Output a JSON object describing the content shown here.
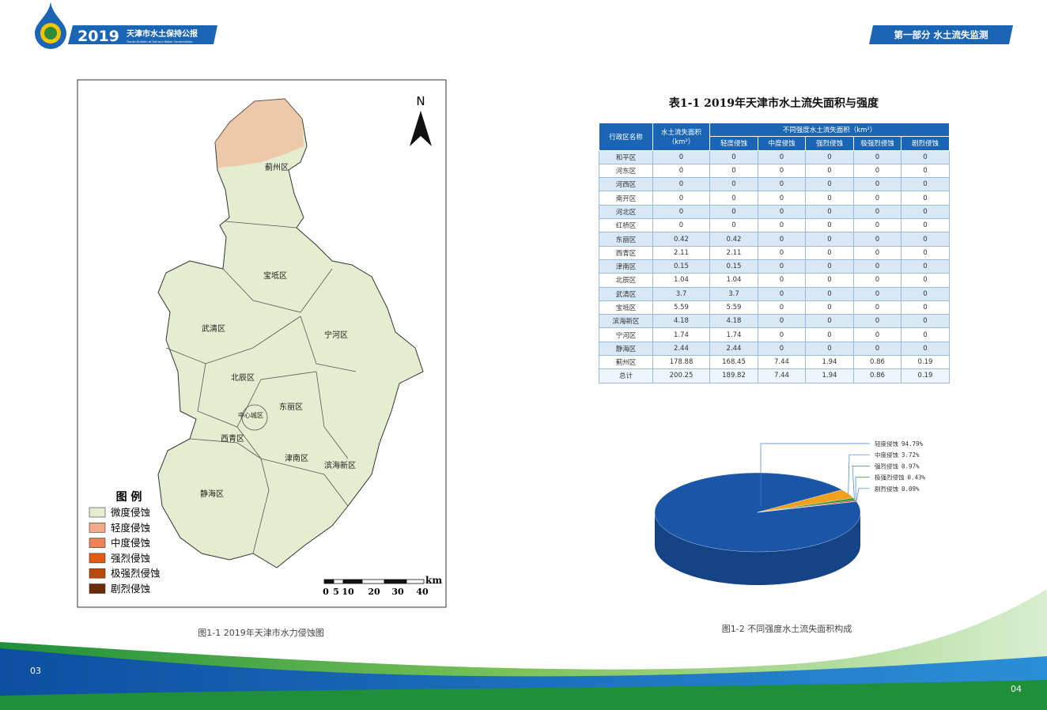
{
  "header": {
    "year": "2019",
    "title": "天津市水土保持公报",
    "subtitle": "Tianjin Bulletin of Soil and Water Conservation",
    "section": "第一部分 水土流失监测"
  },
  "map": {
    "north": "N",
    "districts": [
      "蓟州区",
      "宝坻区",
      "武清区",
      "宁河区",
      "北辰区",
      "东丽区",
      "中心城区",
      "西青区",
      "津南区",
      "滨海新区",
      "静海区"
    ],
    "legend": {
      "title": "图 例",
      "items": [
        {
          "label": "微度侵蚀",
          "color": "#e4edcf"
        },
        {
          "label": "轻度侵蚀",
          "color": "#f4a98a"
        },
        {
          "label": "中度侵蚀",
          "color": "#ef8358"
        },
        {
          "label": "强烈侵蚀",
          "color": "#e25b14"
        },
        {
          "label": "极强烈侵蚀",
          "color": "#b84a0c"
        },
        {
          "label": "剧烈侵蚀",
          "color": "#6b2a08"
        }
      ]
    },
    "scale": {
      "ticks": [
        "0",
        "5",
        "10",
        "20",
        "30",
        "40"
      ],
      "unit": "km"
    },
    "caption": "图1-1 2019年天津市水力侵蚀图"
  },
  "table": {
    "title": "表1-1 2019年天津市水土流失面积与强度",
    "header": {
      "name": "行政区名称",
      "total": "水土流失面积（km²）",
      "group": "不同强度水土流失面积（km²）",
      "levels": [
        "轻度侵蚀",
        "中度侵蚀",
        "强烈侵蚀",
        "极强烈侵蚀",
        "剧烈侵蚀"
      ]
    },
    "rows": [
      [
        "和平区",
        "0",
        "0",
        "0",
        "0",
        "0",
        "0"
      ],
      [
        "河东区",
        "0",
        "0",
        "0",
        "0",
        "0",
        "0"
      ],
      [
        "河西区",
        "0",
        "0",
        "0",
        "0",
        "0",
        "0"
      ],
      [
        "南开区",
        "0",
        "0",
        "0",
        "0",
        "0",
        "0"
      ],
      [
        "河北区",
        "0",
        "0",
        "0",
        "0",
        "0",
        "0"
      ],
      [
        "红桥区",
        "0",
        "0",
        "0",
        "0",
        "0",
        "0"
      ],
      [
        "东丽区",
        "0.42",
        "0.42",
        "0",
        "0",
        "0",
        "0"
      ],
      [
        "西青区",
        "2.11",
        "2.11",
        "0",
        "0",
        "0",
        "0"
      ],
      [
        "津南区",
        "0.15",
        "0.15",
        "0",
        "0",
        "0",
        "0"
      ],
      [
        "北辰区",
        "1.04",
        "1.04",
        "0",
        "0",
        "0",
        "0"
      ],
      [
        "武清区",
        "3.7",
        "3.7",
        "0",
        "0",
        "0",
        "0"
      ],
      [
        "宝坻区",
        "5.59",
        "5.59",
        "0",
        "0",
        "0",
        "0"
      ],
      [
        "滨海新区",
        "4.18",
        "4.18",
        "0",
        "0",
        "0",
        "0"
      ],
      [
        "宁河区",
        "1.74",
        "1.74",
        "0",
        "0",
        "0",
        "0"
      ],
      [
        "静海区",
        "2.44",
        "2.44",
        "0",
        "0",
        "0",
        "0"
      ],
      [
        "蓟州区",
        "178.88",
        "168.45",
        "7.44",
        "1.94",
        "0.86",
        "0.19"
      ],
      [
        "总计",
        "200.25",
        "189.82",
        "7.44",
        "1.94",
        "0.86",
        "0.19"
      ]
    ]
  },
  "pie": {
    "type": "pie",
    "categories": [
      "轻度侵蚀",
      "中度侵蚀",
      "强烈侵蚀",
      "极强烈侵蚀",
      "剧烈侵蚀"
    ],
    "values": [
      94.79,
      3.72,
      0.97,
      0.43,
      0.09
    ],
    "value_labels": [
      "94.79%",
      "3.72%",
      "0.97%",
      "0.43%",
      "0.09%"
    ],
    "colors": [
      "#1a55a8",
      "#f0a01e",
      "#3a9a3a",
      "#c8202a",
      "#c8c040"
    ],
    "caption": "图1-2 不同强度水土流失面积构成"
  },
  "pages": [
    "03",
    "04"
  ]
}
